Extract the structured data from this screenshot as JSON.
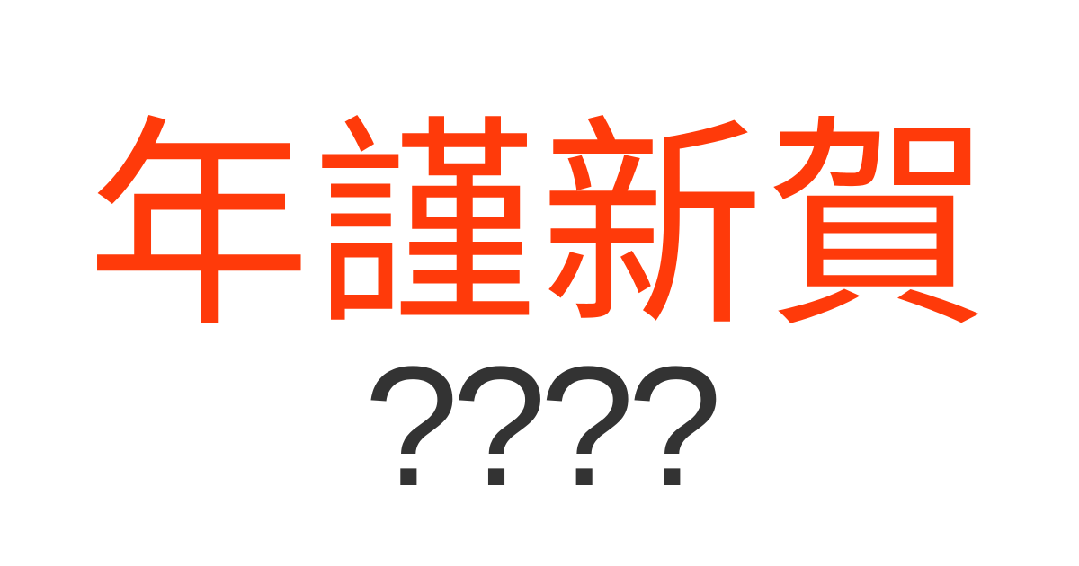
{
  "heading": {
    "text": "年謹新賀",
    "color": "#ff3a0a"
  },
  "subheading": {
    "text": "????",
    "color": "#333333"
  },
  "background": "#ffffff"
}
